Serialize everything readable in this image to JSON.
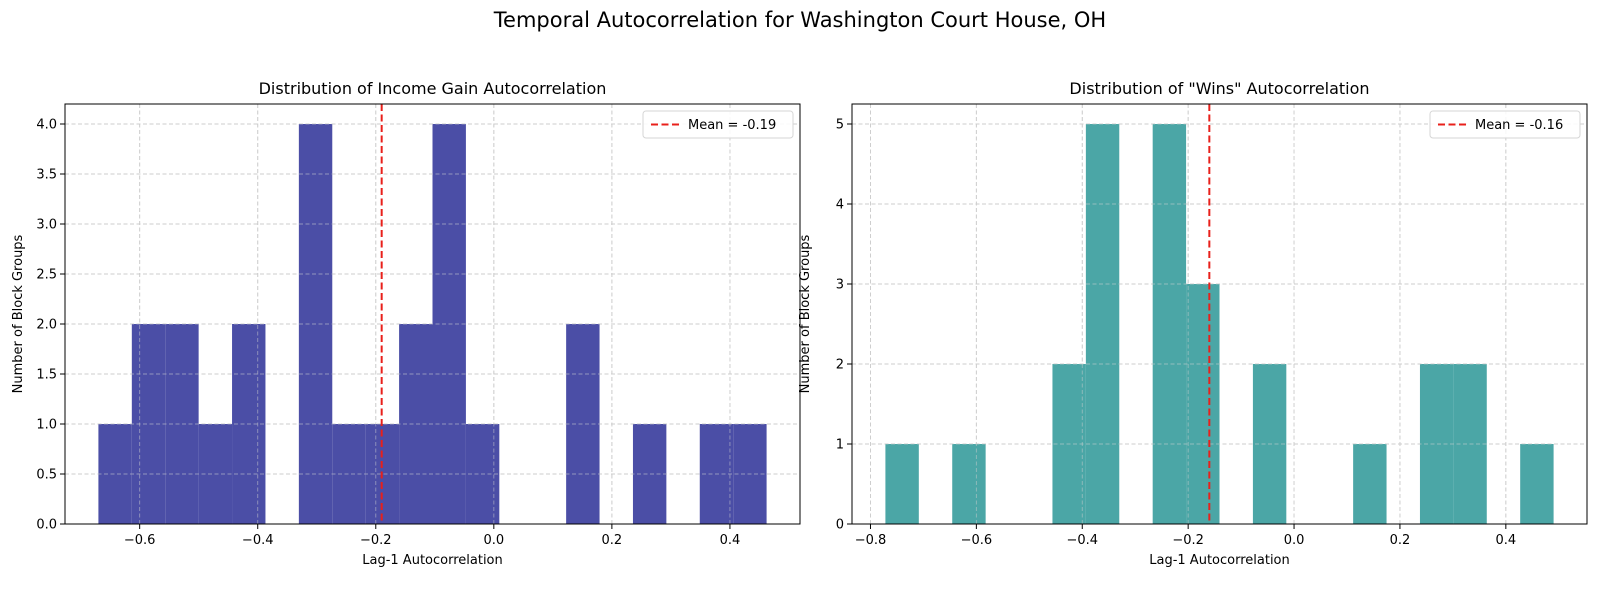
{
  "suptitle": "Temporal Autocorrelation for Washington Court House, OH",
  "chart_data": [
    {
      "type": "bar",
      "subtype": "histogram",
      "title": "Distribution of Income Gain Autocorrelation",
      "xlabel": "Lag-1 Autocorrelation",
      "ylabel": "Number of Block Groups",
      "color": "#4b4ea6",
      "bin_edges": [
        -0.6699,
        -0.6133,
        -0.5567,
        -0.5001,
        -0.4435,
        -0.3869,
        -0.3303,
        -0.2737,
        -0.2171,
        -0.1605,
        -0.1039,
        -0.0473,
        0.0093,
        0.0659,
        0.1225,
        0.1791,
        0.2357,
        0.2923,
        0.3489,
        0.4055,
        0.4621
      ],
      "values": [
        1,
        2,
        2,
        1,
        2,
        0,
        4,
        1,
        1,
        2,
        4,
        1,
        0,
        0,
        2,
        0,
        1,
        0,
        1,
        1
      ],
      "xlim": [
        -0.7265,
        0.5187
      ],
      "ylim": [
        0,
        4.2
      ],
      "xticks": [
        -0.6,
        -0.4,
        -0.2,
        0.0,
        0.2,
        0.4
      ],
      "xtick_labels": [
        "−0.6",
        "−0.4",
        "−0.2",
        "0.0",
        "0.2",
        "0.4"
      ],
      "yticks": [
        0,
        0.5,
        1,
        1.5,
        2,
        2.5,
        3,
        3.5,
        4
      ],
      "ytick_labels": [
        "0.0",
        "0.5",
        "1.0",
        "1.5",
        "2.0",
        "2.5",
        "3.0",
        "3.5",
        "4.0"
      ],
      "mean": -0.19,
      "mean_color": "#e8201b",
      "legend": {
        "label": "Mean = -0.19",
        "loc": "upper right"
      },
      "grid": true
    },
    {
      "type": "bar",
      "subtype": "histogram",
      "title": "Distribution of \"Wins\" Autocorrelation",
      "xlabel": "Lag-1 Autocorrelation",
      "ylabel": "Number of Block Groups",
      "color": "#4ba6a6",
      "bin_edges": [
        -0.7718,
        -0.7087,
        -0.6456,
        -0.5825,
        -0.5194,
        -0.4563,
        -0.3932,
        -0.3301,
        -0.267,
        -0.2039,
        -0.1408,
        -0.0777,
        -0.0146,
        0.0485,
        0.1116,
        0.1747,
        0.2378,
        0.3009,
        0.364,
        0.4271,
        0.4902
      ],
      "values": [
        1,
        0,
        1,
        0,
        0,
        2,
        5,
        0,
        5,
        3,
        0,
        2,
        0,
        0,
        1,
        0,
        2,
        2,
        0,
        1
      ],
      "xlim": [
        -0.8349,
        0.5533
      ],
      "ylim": [
        0,
        5.25
      ],
      "xticks": [
        -0.8,
        -0.6,
        -0.4,
        -0.2,
        0.0,
        0.2,
        0.4
      ],
      "xtick_labels": [
        "−0.8",
        "−0.6",
        "−0.4",
        "−0.2",
        "0.0",
        "0.2",
        "0.4"
      ],
      "yticks": [
        0,
        1,
        2,
        3,
        4,
        5
      ],
      "ytick_labels": [
        "0",
        "1",
        "2",
        "3",
        "4",
        "5"
      ],
      "mean": -0.16,
      "mean_color": "#e8201b",
      "legend": {
        "label": "Mean = -0.16",
        "loc": "upper right"
      },
      "grid": true
    }
  ]
}
